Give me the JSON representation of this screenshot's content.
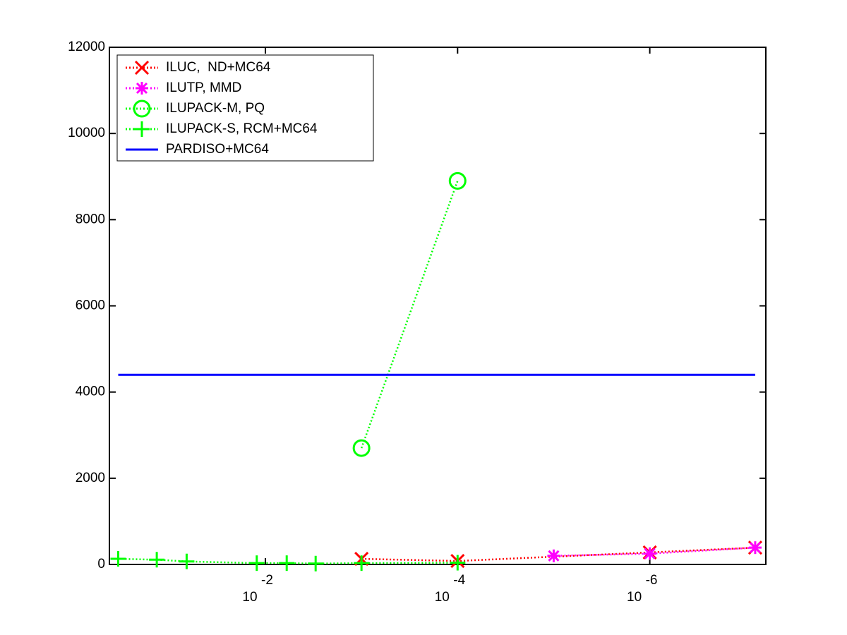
{
  "chart_data": {
    "type": "line",
    "xscale": "log",
    "xreversed": true,
    "xlim": [
      0.42,
      6.2e-08
    ],
    "xticks": [
      {
        "value": 0.01,
        "label": "10",
        "exponent": "-2"
      },
      {
        "value": 0.0001,
        "label": "10",
        "exponent": "-4"
      },
      {
        "value": 1e-06,
        "label": "10",
        "exponent": "-6"
      }
    ],
    "ylim": [
      0,
      12000
    ],
    "yticks": [
      0,
      2000,
      4000,
      6000,
      8000,
      10000,
      12000
    ],
    "legend": "upper left",
    "series": [
      {
        "name": "ILUC,  ND+MC64",
        "color": "#ff0000",
        "marker": "x",
        "linestyle": "dotted",
        "x": [
          0.001,
          0.0001,
          1e-06,
          8e-08
        ],
        "values": [
          130,
          80,
          280,
          390
        ]
      },
      {
        "name": "ILUTP, MMD",
        "color": "#ff00ff",
        "marker": "asterisk",
        "linestyle": "dotted",
        "x": [
          1e-05,
          1e-06,
          8e-08
        ],
        "values": [
          200,
          250,
          390
        ]
      },
      {
        "name": "ILUPACK-M, PQ",
        "color": "#00ff00",
        "marker": "circle",
        "linestyle": "dotted",
        "x": [
          0.001,
          0.0001
        ],
        "values": [
          2700,
          8900
        ]
      },
      {
        "name": "ILUPACK-S, RCM+MC64",
        "color": "#00ff00",
        "marker": "plus",
        "linestyle": "dotted",
        "x": [
          0.34,
          0.135,
          0.066,
          0.0123,
          0.006,
          0.003,
          0.001,
          0.0001
        ],
        "values": [
          130,
          110,
          70,
          30,
          30,
          20,
          30,
          40
        ]
      },
      {
        "name": "PARDISO+MC64",
        "color": "#0000ff",
        "marker": "none",
        "linestyle": "solid",
        "x": [
          0.34,
          8e-08
        ],
        "values": [
          4400,
          4400
        ]
      }
    ]
  }
}
